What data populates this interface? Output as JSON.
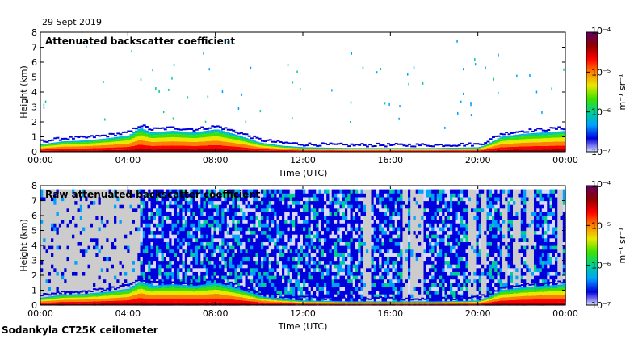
{
  "header": {
    "date": "29 Sept 2019"
  },
  "footer": {
    "instrument": "Sodankyla CT25K ceilometer"
  },
  "colors": {
    "missing": "#cccccc",
    "colormap": [
      "#d8d8ff",
      "#0000dd",
      "#00a0ff",
      "#00d090",
      "#40e000",
      "#e8e800",
      "#ff8000",
      "#ff0000",
      "#900000",
      "#600060"
    ]
  },
  "chart_data": [
    {
      "type": "heatmap",
      "title": "Attenuated backscatter coefficient",
      "xlabel": "Time (UTC)",
      "ylabel": "Height (km)",
      "xlim": [
        0,
        24
      ],
      "ylim": [
        0,
        8
      ],
      "xticks": [
        "00:00",
        "04:00",
        "08:00",
        "12:00",
        "16:00",
        "20:00",
        "00:00"
      ],
      "yticks": [
        "0",
        "1",
        "2",
        "3",
        "4",
        "5",
        "6",
        "7",
        "8"
      ],
      "colorbar": {
        "label": "m⁻¹ sr⁻¹",
        "scale": "log",
        "range": [
          1e-07,
          0.0001
        ],
        "ticks": [
          "10⁻⁷",
          "10⁻⁶",
          "10⁻⁵",
          "10⁻⁴"
        ]
      },
      "boundary_layer_top_km": {
        "time_h": [
          0,
          1,
          2,
          3,
          4,
          4.5,
          5,
          6,
          7,
          8,
          9,
          10,
          11,
          12,
          14,
          16,
          18,
          20,
          20.5,
          21,
          22,
          23,
          24
        ],
        "height_km": [
          0.5,
          0.7,
          0.75,
          0.9,
          1.1,
          1.6,
          1.3,
          1.4,
          1.3,
          1.5,
          1.1,
          0.6,
          0.4,
          0.3,
          0.25,
          0.25,
          0.25,
          0.3,
          0.6,
          1.0,
          1.2,
          1.3,
          1.4
        ]
      }
    },
    {
      "type": "heatmap",
      "title": "Raw attenuated backscatter coefficient",
      "xlabel": "Time (UTC)",
      "ylabel": "Height (km)",
      "xlim": [
        0,
        24
      ],
      "ylim": [
        0,
        8
      ],
      "xticks": [
        "00:00",
        "04:00",
        "08:00",
        "12:00",
        "16:00",
        "20:00",
        "00:00"
      ],
      "yticks": [
        "0",
        "1",
        "2",
        "3",
        "4",
        "5",
        "6",
        "7",
        "8"
      ],
      "colorbar": {
        "label": "m⁻¹ sr⁻¹",
        "scale": "log",
        "range": [
          1e-07,
          0.0001
        ],
        "ticks": [
          "10⁻⁷",
          "10⁻⁶",
          "10⁻⁵",
          "10⁻⁴"
        ]
      },
      "noise_regions": [
        {
          "from_h": 0,
          "to_h": 4.5,
          "dominant": "missing"
        },
        {
          "from_h": 4.5,
          "to_h": 24,
          "dominant": "low-signal noise"
        }
      ],
      "gap_stripes_h": [
        14.9,
        16.6,
        17.0,
        17.3,
        19.7,
        20.2,
        21.2,
        21.7,
        22.3,
        23.7
      ]
    }
  ]
}
